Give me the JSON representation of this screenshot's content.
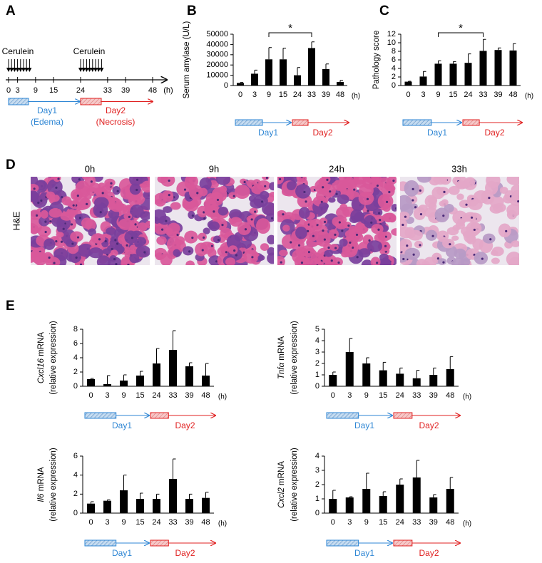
{
  "panels": {
    "a": "A",
    "b": "B",
    "c": "C",
    "d": "D",
    "e": "E"
  },
  "timeline": {
    "injection_label": [
      "Cerulein",
      "Cerulein"
    ],
    "xlim": [
      0,
      48
    ],
    "xticks": [
      0,
      3,
      9,
      15,
      24,
      33,
      39,
      48
    ],
    "unit": "(h)",
    "day1": "Day1",
    "day1_note": "(Edema)",
    "day2": "Day2",
    "day2_note": "(Necrosis)"
  },
  "histology": {
    "stain": "H&E",
    "labels": [
      "0h",
      "9h",
      "24h",
      "33h"
    ]
  },
  "chart_data": [
    {
      "type": "bar",
      "ylabel": "Serum amylase (U/L)",
      "xlabel": "(h)",
      "categories": [
        "0",
        "3",
        "9",
        "15",
        "24",
        "33",
        "39",
        "48"
      ],
      "values": [
        2500,
        11500,
        25500,
        25500,
        10000,
        36500,
        16000,
        3500
      ],
      "errors": [
        500,
        3500,
        11500,
        11000,
        7500,
        6000,
        5000,
        1500
      ],
      "ylim": [
        0,
        50000
      ],
      "yticks": [
        0,
        10000,
        20000,
        30000,
        40000,
        50000
      ],
      "color": "#000000",
      "significance_label": "*",
      "day1": "Day1",
      "day2": "Day2"
    },
    {
      "type": "bar",
      "ylabel": "Pathology score",
      "xlabel": "(h)",
      "categories": [
        "0",
        "3",
        "9",
        "15",
        "24",
        "33",
        "39",
        "48"
      ],
      "values": [
        0.9,
        2.1,
        5.1,
        5.1,
        5.3,
        8.1,
        8.3,
        8.2
      ],
      "errors": [
        0.1,
        1.2,
        0.7,
        0.5,
        2.1,
        2.7,
        0.5,
        1.6
      ],
      "ylim": [
        0,
        12
      ],
      "yticks": [
        0,
        2,
        4,
        6,
        8,
        10,
        12
      ],
      "color": "#000000",
      "significance_label": "*",
      "day1": "Day1",
      "day2": "Day2"
    },
    {
      "type": "bar",
      "ylabel_gene": "Cxcl16",
      "ylabel": "mRNA",
      "ylabel2": "(relative expression)",
      "xlabel": "(h)",
      "categories": [
        "0",
        "3",
        "9",
        "15",
        "24",
        "33",
        "39",
        "48"
      ],
      "values": [
        1.0,
        0.3,
        0.8,
        1.5,
        3.2,
        5.1,
        2.8,
        1.5
      ],
      "errors": [
        0.1,
        1.2,
        0.8,
        0.6,
        2.1,
        2.7,
        0.5,
        1.7
      ],
      "ylim": [
        0,
        8
      ],
      "yticks": [
        0,
        2,
        4,
        6,
        8
      ],
      "color": "#000000",
      "day1": "Day1",
      "day2": "Day2"
    },
    {
      "type": "bar",
      "ylabel_gene": "Tnfα",
      "ylabel": "mRNA",
      "ylabel2": "(relative expression)",
      "xlabel": "(h)",
      "categories": [
        "0",
        "3",
        "9",
        "15",
        "24",
        "33",
        "39",
        "48"
      ],
      "values": [
        1.0,
        3.0,
        2.0,
        1.4,
        1.1,
        0.7,
        1.0,
        1.5
      ],
      "errors": [
        0.25,
        1.2,
        0.5,
        0.7,
        0.5,
        0.7,
        0.6,
        1.1
      ],
      "ylim": [
        0,
        5
      ],
      "yticks": [
        0,
        1,
        2,
        3,
        4,
        5
      ],
      "color": "#000000",
      "day1": "Day1",
      "day2": "Day2"
    },
    {
      "type": "bar",
      "ylabel_gene": "Il6",
      "ylabel": "mRNA",
      "ylabel2": "(relative expression)",
      "xlabel": "(h)",
      "categories": [
        "0",
        "3",
        "9",
        "15",
        "24",
        "33",
        "39",
        "48"
      ],
      "values": [
        1.0,
        1.3,
        2.4,
        1.5,
        1.5,
        3.6,
        1.5,
        1.6
      ],
      "errors": [
        0.2,
        0.1,
        1.6,
        0.6,
        0.5,
        2.1,
        0.5,
        0.6
      ],
      "ylim": [
        0,
        6
      ],
      "yticks": [
        0,
        2,
        4,
        6
      ],
      "color": "#000000",
      "day1": "Day1",
      "day2": "Day2"
    },
    {
      "type": "bar",
      "ylabel_gene": "Cxcl2",
      "ylabel": "mRNA",
      "ylabel2": "(relative expression)",
      "xlabel": "(h)",
      "categories": [
        "0",
        "3",
        "9",
        "15",
        "24",
        "33",
        "39",
        "48"
      ],
      "values": [
        1.0,
        1.1,
        1.7,
        1.2,
        2.0,
        2.5,
        1.1,
        1.7
      ],
      "errors": [
        0.6,
        0.05,
        1.1,
        0.3,
        0.4,
        1.2,
        0.2,
        0.8
      ],
      "ylim": [
        0,
        4
      ],
      "yticks": [
        0,
        1,
        2,
        3,
        4
      ],
      "color": "#000000",
      "day1": "Day1",
      "day2": "Day2"
    }
  ]
}
